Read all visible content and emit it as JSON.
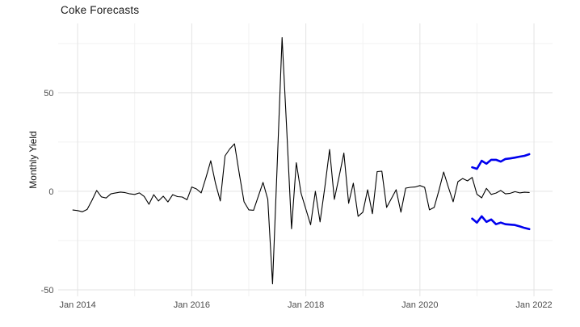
{
  "chart_data": {
    "type": "line",
    "title": "Coke Forecasts",
    "xlabel": "",
    "ylabel": "Monthly Yield",
    "x_axis": {
      "unit": "months since Jan 2014",
      "range_months": [
        -4.1,
        99.9
      ],
      "major_ticks": [
        {
          "m": 0,
          "label": "Jan 2014"
        },
        {
          "m": 24,
          "label": "Jan 2016"
        },
        {
          "m": 48,
          "label": "Jan 2018"
        },
        {
          "m": 72,
          "label": "Jan 2020"
        },
        {
          "m": 96,
          "label": "Jan 2022"
        }
      ],
      "minor_ticks": [
        12,
        36,
        60,
        84
      ]
    },
    "y_axis": {
      "range": [
        -53.3,
        85.2
      ],
      "major_ticks": [
        {
          "v": -50,
          "label": "-50"
        },
        {
          "v": 0,
          "label": "0"
        },
        {
          "v": 50,
          "label": "50"
        }
      ],
      "minor_ticks": [
        -25,
        25,
        75
      ]
    },
    "grid": {
      "major_color": "#e3e3e3",
      "minor_color": "#f2f2f2",
      "background": "#ffffff"
    },
    "text_colors": {
      "title": "#1a1a1a",
      "axis_title": "#111111",
      "tick_label": "#4d4d4d"
    },
    "legend": "none",
    "series": [
      {
        "name": "observed",
        "role": "historical data",
        "color": "#000000",
        "width": 1.1,
        "x": [
          -1,
          0,
          1,
          2,
          3,
          4,
          5,
          6,
          7,
          8,
          9,
          10,
          11,
          12,
          13,
          14,
          15,
          16,
          17,
          18,
          19,
          20,
          21,
          22,
          23,
          24,
          25,
          26,
          27,
          28,
          29,
          30,
          31,
          32,
          33,
          34,
          35,
          36,
          37,
          38,
          39,
          40,
          41,
          42,
          43,
          44,
          45,
          46,
          47,
          48,
          49,
          50,
          51,
          52,
          53,
          54,
          55,
          56,
          57,
          58,
          59,
          60,
          61,
          62,
          63,
          64,
          65,
          66,
          67,
          68,
          69,
          70,
          71,
          72,
          73,
          74,
          75,
          76,
          77,
          78,
          79,
          80,
          81,
          82,
          83
        ],
        "y": [
          -9.5,
          -9.8,
          -10.4,
          -9.2,
          -4.6,
          0.4,
          -2.8,
          -3.4,
          -1.3,
          -0.8,
          -0.4,
          -0.7,
          -1.3,
          -1.6,
          -0.8,
          -2.6,
          -6.6,
          -1.7,
          -4.9,
          -2.5,
          -5.4,
          -1.7,
          -2.7,
          -2.9,
          -4.3,
          2.2,
          1.2,
          -0.8,
          7.0,
          15.5,
          4.0,
          -4.9,
          18.0,
          21.5,
          24.1,
          9.0,
          -5.3,
          -9.4,
          -9.6,
          -2.6,
          4.5,
          -4.1,
          -47.0,
          15.0,
          78.0,
          30.0,
          -19.0,
          14.5,
          -1.0,
          -9.0,
          -17.0,
          0.0,
          -15.5,
          2.0,
          21.2,
          -4.1,
          7.5,
          19.4,
          -6.1,
          4.1,
          -12.7,
          -10.6,
          0.8,
          -11.4,
          10.0,
          10.2,
          -8.2,
          -3.7,
          0.8,
          -10.6,
          1.6,
          2.0,
          2.2,
          2.9,
          2.0,
          -9.4,
          -8.2,
          0.5,
          9.8,
          2.0,
          -5.3,
          4.9,
          6.5,
          5.3,
          7.0
        ]
      },
      {
        "name": "forecast-mean",
        "role": "forecast center line",
        "color": "#000000",
        "width": 1.1,
        "x": [
          83,
          84,
          85,
          86,
          87,
          88,
          89,
          90,
          91,
          92,
          93,
          94,
          95
        ],
        "y": [
          7.0,
          -1.5,
          -3.3,
          1.5,
          -1.6,
          -0.9,
          0.4,
          -1.3,
          -1.0,
          -0.2,
          -0.8,
          -0.5,
          -0.6
        ]
      },
      {
        "name": "forecast-upper",
        "role": "forecast upper bound",
        "color": "#0000ee",
        "width": 2.6,
        "x": [
          83,
          84,
          85,
          86,
          87,
          88,
          89,
          90,
          91,
          92,
          93,
          94,
          95
        ],
        "y": [
          12.2,
          11.4,
          15.5,
          14.0,
          16.0,
          16.0,
          15.1,
          16.4,
          16.7,
          17.1,
          17.6,
          18.0,
          18.8
        ]
      },
      {
        "name": "forecast-lower",
        "role": "forecast lower bound",
        "color": "#0000ee",
        "width": 2.6,
        "x": [
          83,
          84,
          85,
          86,
          87,
          88,
          89,
          90,
          91,
          92,
          93,
          94,
          95
        ],
        "y": [
          -13.9,
          -15.9,
          -12.7,
          -15.5,
          -14.3,
          -16.7,
          -15.9,
          -16.7,
          -16.9,
          -17.1,
          -17.8,
          -18.6,
          -19.2
        ]
      }
    ]
  }
}
